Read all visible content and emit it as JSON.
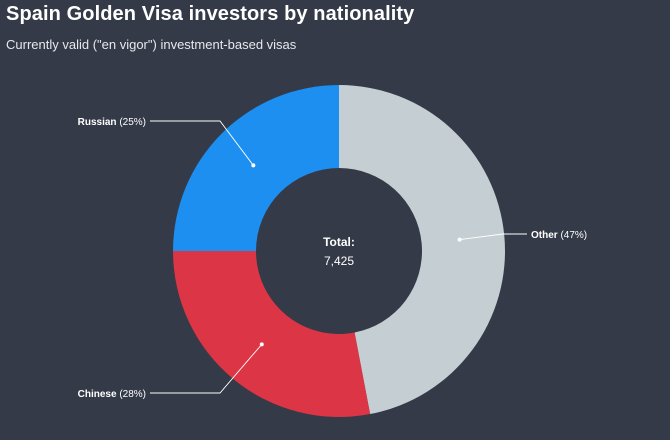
{
  "chart_data": {
    "type": "pie",
    "title": "Spain Golden Visa investors by nationality",
    "subtitle": "Currently valid (\"en vigor\") investment-based visas",
    "center_label": "Total:",
    "center_value": "7,425",
    "slices": [
      {
        "label": "Other",
        "value": 47,
        "pct_text": "(47%)",
        "color": "#c5ced3"
      },
      {
        "label": "Chinese",
        "value": 28,
        "pct_text": "(28%)",
        "color": "#dc3545"
      },
      {
        "label": "Russian",
        "value": 25,
        "pct_text": "(25%)",
        "color": "#1c8ff0"
      }
    ],
    "donut": true
  },
  "colors": {
    "background": "#343a47",
    "leader_line": "#ffffff"
  }
}
